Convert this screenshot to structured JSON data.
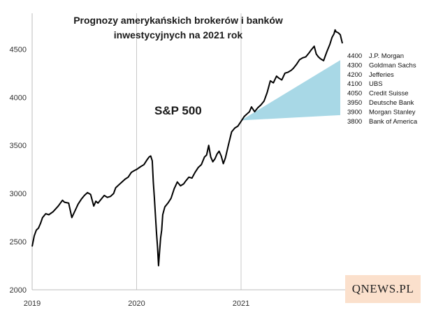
{
  "chart_data": {
    "type": "line",
    "title": [
      "Prognozy amerykańskich brokerów i banków",
      "inwestycyjnych na 2021 rok"
    ],
    "annotation": "S&P 500",
    "xlabel": "",
    "ylabel": "",
    "ylim": [
      2000,
      4800
    ],
    "yticks": [
      2000,
      2500,
      3000,
      3500,
      4000,
      4500
    ],
    "xlim": [
      2019.0,
      2022.0
    ],
    "xticks": [
      "2019",
      "2020",
      "2021"
    ],
    "grid": "vertical lines at year starts",
    "series": [
      {
        "x": [
          2019.0,
          2019.02,
          2019.04,
          2019.06,
          2019.08,
          2019.1,
          2019.13,
          2019.16,
          2019.2,
          2019.25,
          2019.29,
          2019.31,
          2019.35,
          2019.38,
          2019.41,
          2019.44,
          2019.47,
          2019.5,
          2019.53,
          2019.56,
          2019.59,
          2019.61,
          2019.63,
          2019.66,
          2019.69,
          2019.72,
          2019.75,
          2019.78,
          2019.8,
          2019.83,
          2019.86,
          2019.89,
          2019.92,
          2019.95,
          2019.98,
          2020.0,
          2020.04,
          2020.07,
          2020.1,
          2020.12,
          2020.135,
          2020.15,
          2020.16,
          2020.17,
          2020.18,
          2020.19,
          2020.2,
          2020.21,
          2020.22,
          2020.23,
          2020.24,
          2020.25,
          2020.27,
          2020.3,
          2020.33,
          2020.36,
          2020.39,
          2020.42,
          2020.45,
          2020.47,
          2020.5,
          2020.53,
          2020.56,
          2020.59,
          2020.62,
          2020.65,
          2020.67,
          2020.69,
          2020.71,
          2020.73,
          2020.75,
          2020.77,
          2020.79,
          2020.81,
          2020.83,
          2020.85,
          2020.88,
          2020.91,
          2020.94,
          2020.97,
          2021.0,
          2021.03,
          2021.06,
          2021.08,
          2021.1,
          2021.13,
          2021.16,
          2021.19,
          2021.22,
          2021.25,
          2021.28,
          2021.31,
          2021.34,
          2021.36,
          2021.39,
          2021.42,
          2021.45,
          2021.48,
          2021.5,
          2021.53,
          2021.56,
          2021.59,
          2021.62,
          2021.65,
          2021.67,
          2021.7,
          2021.72,
          2021.74,
          2021.76,
          2021.79,
          2021.82,
          2021.85,
          2021.87,
          2021.89,
          2021.9,
          2021.91,
          2021.93,
          2021.95,
          2021.97
        ],
        "y": [
          2450,
          2560,
          2620,
          2640,
          2690,
          2750,
          2790,
          2780,
          2810,
          2870,
          2930,
          2910,
          2900,
          2750,
          2820,
          2890,
          2940,
          2980,
          3010,
          2990,
          2870,
          2920,
          2900,
          2940,
          2980,
          2960,
          2970,
          3000,
          3060,
          3090,
          3120,
          3150,
          3170,
          3220,
          3240,
          3250,
          3280,
          3300,
          3350,
          3380,
          3390,
          3340,
          3120,
          2960,
          2780,
          2600,
          2450,
          2250,
          2400,
          2540,
          2620,
          2780,
          2860,
          2900,
          2950,
          3050,
          3120,
          3080,
          3100,
          3130,
          3170,
          3160,
          3220,
          3270,
          3300,
          3380,
          3400,
          3500,
          3380,
          3330,
          3360,
          3410,
          3440,
          3390,
          3310,
          3370,
          3510,
          3640,
          3680,
          3700,
          3750,
          3800,
          3830,
          3850,
          3900,
          3850,
          3890,
          3920,
          3960,
          4050,
          4170,
          4150,
          4220,
          4200,
          4180,
          4250,
          4260,
          4280,
          4300,
          4340,
          4390,
          4410,
          4420,
          4460,
          4490,
          4530,
          4450,
          4420,
          4400,
          4380,
          4470,
          4550,
          4620,
          4660,
          4700,
          4680,
          4670,
          4650,
          4560
        ]
      }
    ],
    "forecast_range": {
      "label_x": 2021.0,
      "low": 3800,
      "high": 4400
    },
    "forecasts": [
      {
        "value": "4400",
        "name": "J.P. Morgan"
      },
      {
        "value": "4300",
        "name": "Goldman Sachs"
      },
      {
        "value": "4200",
        "name": "Jefferies"
      },
      {
        "value": "4100",
        "name": "UBS"
      },
      {
        "value": "4050",
        "name": "Credit Suisse"
      },
      {
        "value": "3950",
        "name": "Deutsche Bank"
      },
      {
        "value": "3900",
        "name": "Morgan Stanley"
      },
      {
        "value": "3800",
        "name": "Bank of America"
      }
    ],
    "colors": {
      "line": "#000000",
      "forecast_fill": "#a8d8e6",
      "grid": "#c8c8c8",
      "logo_bg": "#fbe0cc"
    }
  },
  "logo": "QNEWS.PL"
}
